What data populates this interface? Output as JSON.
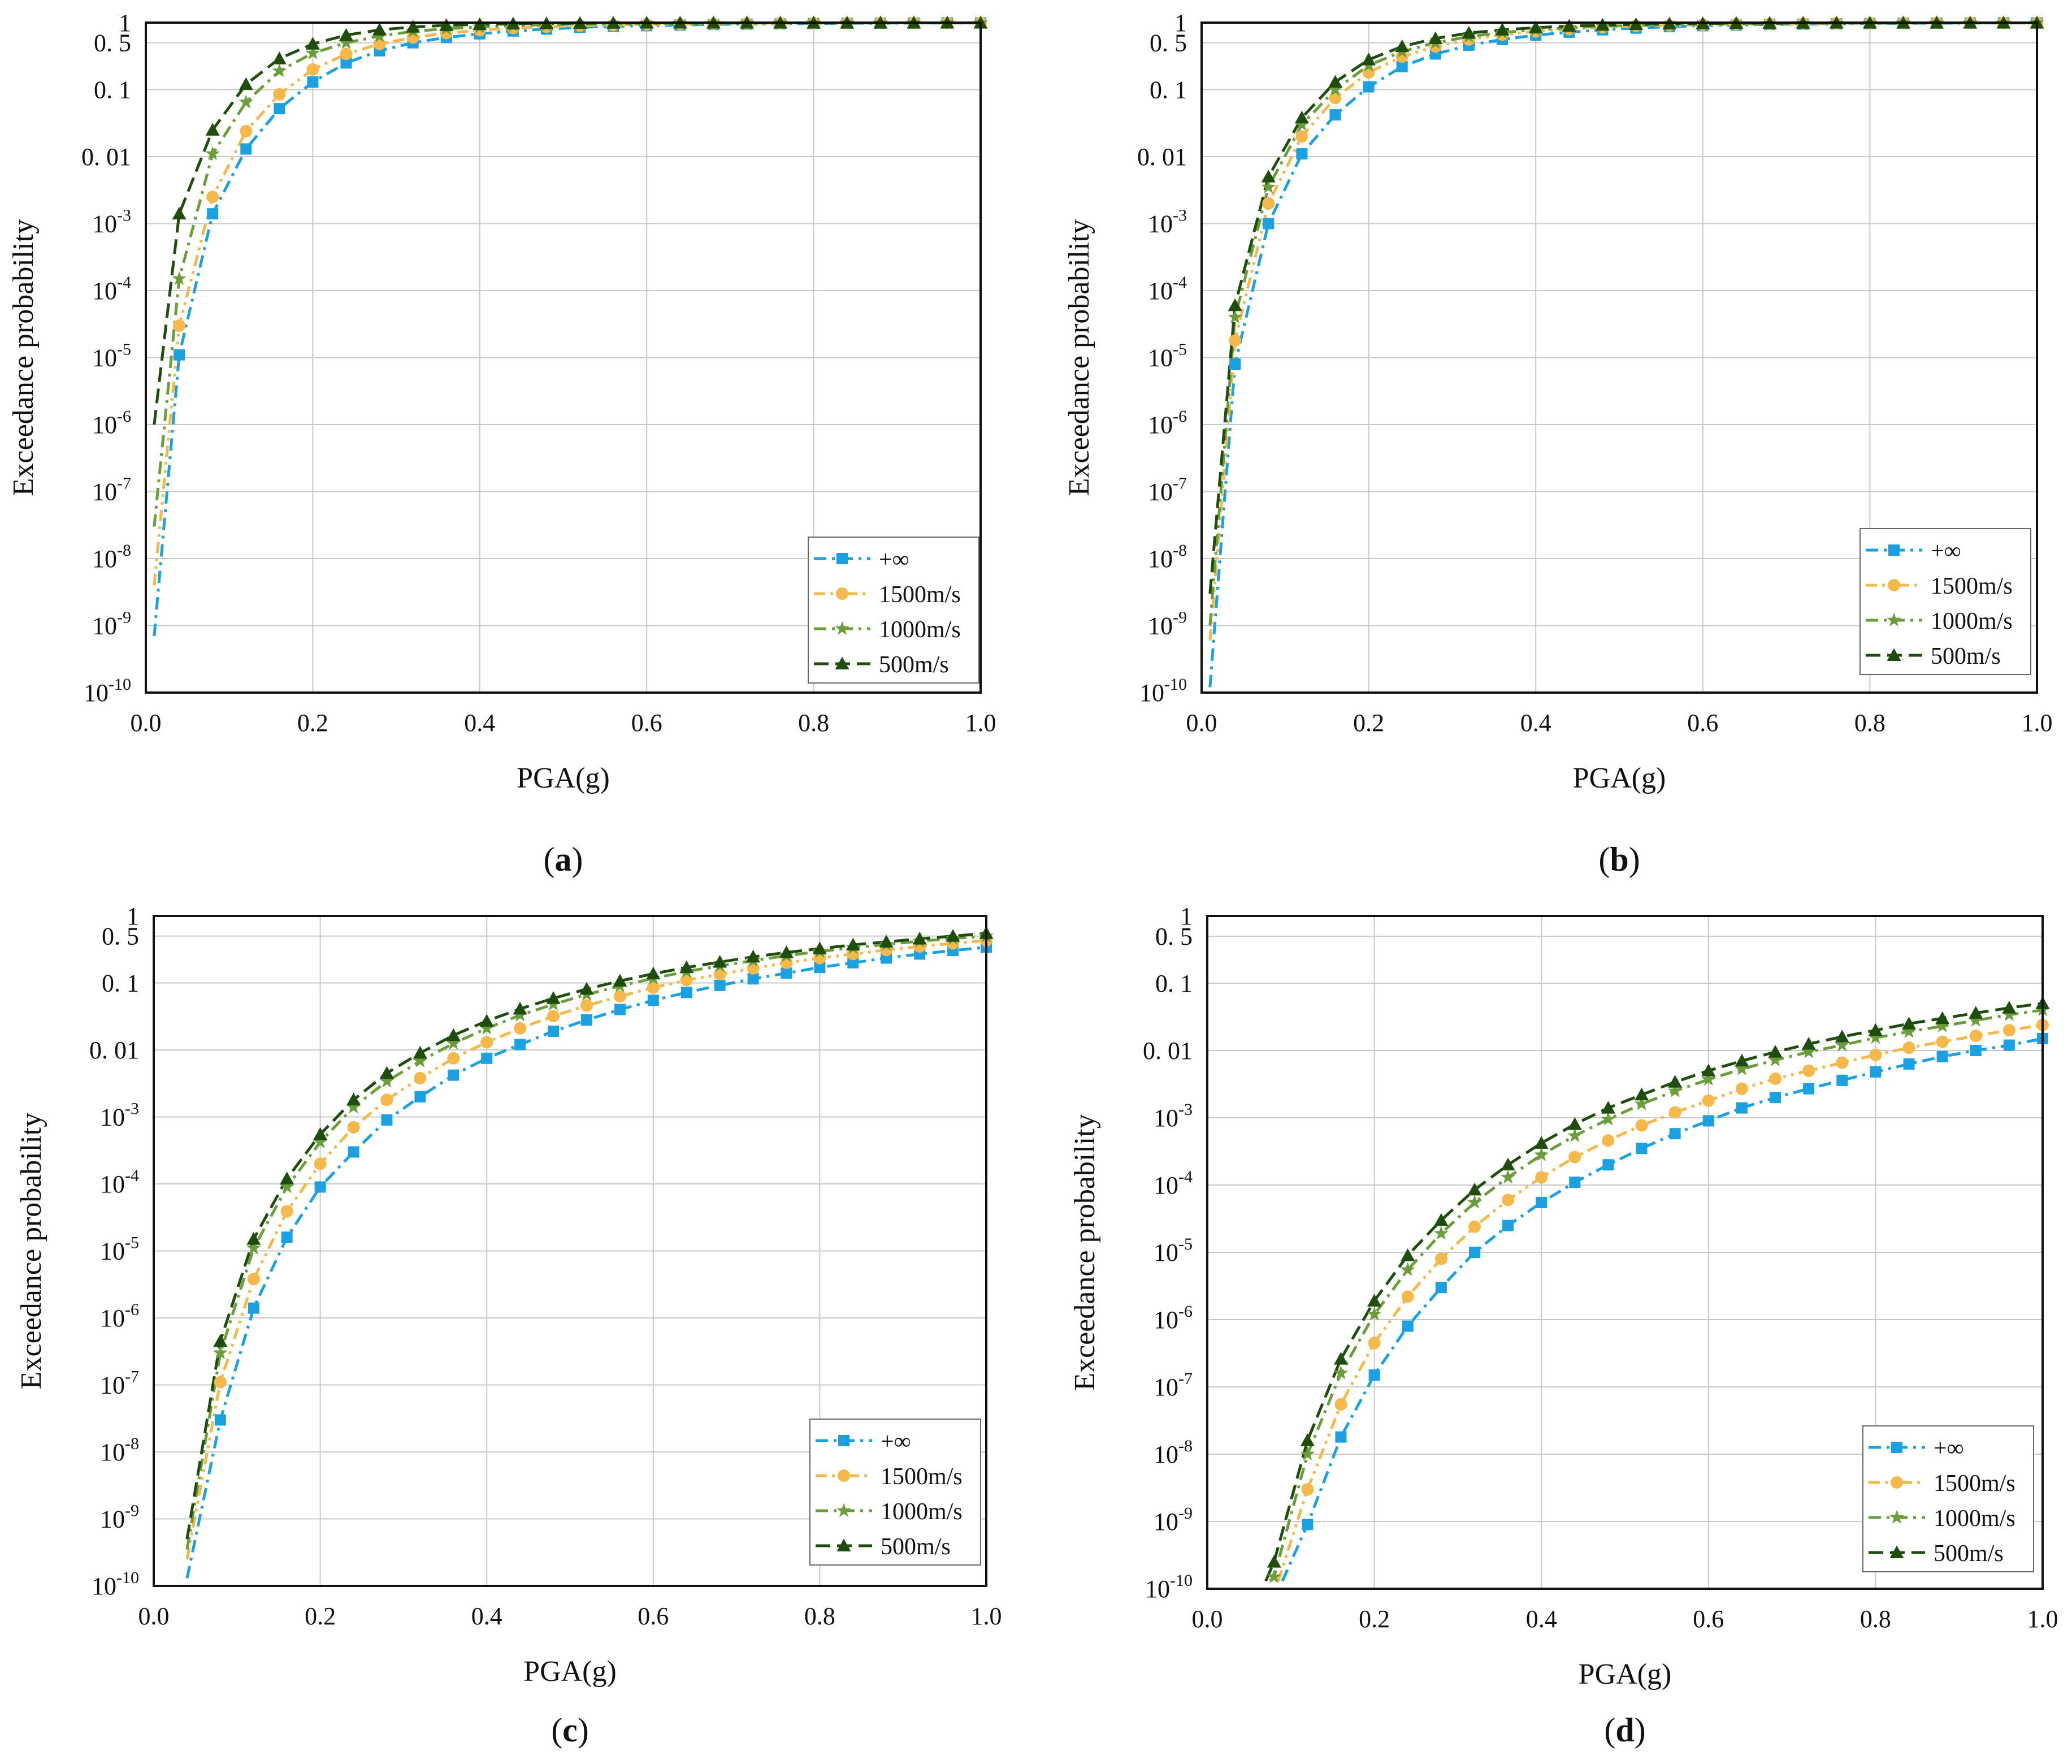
{
  "figure": {
    "colors": {
      "inf": "#1ba1e2",
      "v1500": "#f5b84a",
      "v1000": "#6b9e3a",
      "v500": "#1f4d0e"
    },
    "legend": [
      "+∞",
      "1500m/s",
      "1000m/s",
      "500m/s"
    ]
  },
  "chart_data": [
    {
      "type": "line",
      "panel_label": "a",
      "xlabel": "PGA(g)",
      "ylabel": "Exceedance probability",
      "xlim": [
        0,
        1.0
      ],
      "ylim": [
        1e-10,
        1
      ],
      "yscale": "log",
      "xticks": [
        "0.0",
        "0.2",
        "0.4",
        "0.6",
        "0.8",
        "1.0"
      ],
      "yticks": [
        {
          "value": 1,
          "base": "1",
          "exp": ""
        },
        {
          "value": 0.5,
          "base": "0. 5",
          "exp": ""
        },
        {
          "value": 0.1,
          "base": "0. 1",
          "exp": ""
        },
        {
          "value": 0.01,
          "base": "0. 01",
          "exp": ""
        },
        {
          "value": 0.001,
          "base": "10",
          "exp": "-3"
        },
        {
          "value": 0.0001,
          "base": "10",
          "exp": "-4"
        },
        {
          "value": 1e-05,
          "base": "10",
          "exp": "-5"
        },
        {
          "value": 1e-06,
          "base": "10",
          "exp": "-6"
        },
        {
          "value": 1e-07,
          "base": "10",
          "exp": "-7"
        },
        {
          "value": 1e-08,
          "base": "10",
          "exp": "-8"
        },
        {
          "value": 1e-09,
          "base": "10",
          "exp": "-9"
        },
        {
          "value": 1e-10,
          "base": "10",
          "exp": "-10"
        }
      ],
      "grid": true,
      "legend_position": "bottom-right",
      "x": [
        0,
        0.04,
        0.08,
        0.12,
        0.16,
        0.2,
        0.24,
        0.28,
        0.32,
        0.36,
        0.4,
        0.44,
        0.48,
        0.52,
        0.56,
        0.6,
        0.64,
        0.68,
        0.72,
        0.76,
        0.8,
        0.84,
        0.88,
        0.92,
        0.96,
        1.0
      ],
      "series": [
        {
          "name": "+∞",
          "key": "inf",
          "marker": "square",
          "dash": "dashdot",
          "start": [
            0.01,
            7e-10
          ],
          "values": [
            null,
            1.1e-05,
            0.0014,
            0.013,
            0.052,
            0.13,
            0.25,
            0.38,
            0.5,
            0.6,
            0.68,
            0.75,
            0.8,
            0.85,
            0.88,
            0.9,
            0.92,
            0.94,
            0.95,
            0.96,
            0.97,
            0.975,
            0.98,
            0.985,
            0.99,
            0.99
          ]
        },
        {
          "name": "1500m/s",
          "key": "v1500",
          "marker": "circle",
          "dash": "dashdotdot",
          "start": [
            0.01,
            4e-09
          ],
          "values": [
            null,
            3e-05,
            0.0025,
            0.024,
            0.085,
            0.2,
            0.34,
            0.48,
            0.6,
            0.7,
            0.77,
            0.83,
            0.87,
            0.9,
            0.92,
            0.94,
            0.95,
            0.96,
            0.97,
            0.975,
            0.98,
            0.985,
            0.99,
            0.99,
            0.99,
            0.99
          ]
        },
        {
          "name": "1000m/s",
          "key": "v1000",
          "marker": "star",
          "dash": "dashdot",
          "start": [
            0.01,
            3e-08
          ],
          "values": [
            null,
            0.00015,
            0.011,
            0.065,
            0.19,
            0.35,
            0.5,
            0.63,
            0.74,
            0.81,
            0.86,
            0.9,
            0.93,
            0.95,
            0.96,
            0.97,
            0.98,
            0.98,
            0.985,
            0.99,
            0.99,
            0.99,
            0.99,
            0.99,
            0.99,
            0.99
          ]
        },
        {
          "name": "500m/s",
          "key": "v500",
          "marker": "triangle",
          "dash": "dash",
          "start": [
            0.01,
            1e-06
          ],
          "values": [
            null,
            0.0014,
            0.025,
            0.12,
            0.29,
            0.48,
            0.65,
            0.78,
            0.86,
            0.91,
            0.94,
            0.96,
            0.97,
            0.98,
            0.985,
            0.99,
            0.99,
            0.99,
            0.99,
            0.99,
            0.99,
            0.99,
            0.99,
            0.99,
            0.99,
            0.99
          ]
        }
      ]
    },
    {
      "type": "line",
      "panel_label": "b",
      "xlabel": "PGA(g)",
      "ylabel": "Exceedance probability",
      "xlim": [
        0,
        1.0
      ],
      "ylim": [
        1e-10,
        1
      ],
      "yscale": "log",
      "xticks": [
        "0.0",
        "0.2",
        "0.4",
        "0.6",
        "0.8",
        "1.0"
      ],
      "yticks": [
        {
          "value": 1,
          "base": "1",
          "exp": ""
        },
        {
          "value": 0.5,
          "base": "0. 5",
          "exp": ""
        },
        {
          "value": 0.1,
          "base": "0. 1",
          "exp": ""
        },
        {
          "value": 0.01,
          "base": "0. 01",
          "exp": ""
        },
        {
          "value": 0.001,
          "base": "10",
          "exp": "-3"
        },
        {
          "value": 0.0001,
          "base": "10",
          "exp": "-4"
        },
        {
          "value": 1e-05,
          "base": "10",
          "exp": "-5"
        },
        {
          "value": 1e-06,
          "base": "10",
          "exp": "-6"
        },
        {
          "value": 1e-07,
          "base": "10",
          "exp": "-7"
        },
        {
          "value": 1e-08,
          "base": "10",
          "exp": "-8"
        },
        {
          "value": 1e-09,
          "base": "10",
          "exp": "-9"
        },
        {
          "value": 1e-10,
          "base": "10",
          "exp": "-10"
        }
      ],
      "grid": true,
      "legend_position": "bottom-right",
      "x": [
        0,
        0.04,
        0.08,
        0.12,
        0.16,
        0.2,
        0.24,
        0.28,
        0.32,
        0.36,
        0.4,
        0.44,
        0.48,
        0.52,
        0.56,
        0.6,
        0.64,
        0.68,
        0.72,
        0.76,
        0.8,
        0.84,
        0.88,
        0.92,
        0.96,
        1.0
      ],
      "series": [
        {
          "name": "+∞",
          "key": "inf",
          "marker": "square",
          "dash": "dashdot",
          "start": [
            0.01,
            1.2e-10
          ],
          "values": [
            null,
            8e-06,
            0.001,
            0.011,
            0.042,
            0.11,
            0.22,
            0.34,
            0.46,
            0.56,
            0.65,
            0.72,
            0.78,
            0.83,
            0.87,
            0.9,
            0.92,
            0.94,
            0.95,
            0.96,
            0.97,
            0.975,
            0.98,
            0.985,
            0.99,
            0.99
          ]
        },
        {
          "name": "1500m/s",
          "key": "v1500",
          "marker": "circle",
          "dash": "dashdotdot",
          "start": [
            0.01,
            6e-10
          ],
          "values": [
            null,
            1.8e-05,
            0.002,
            0.02,
            0.075,
            0.18,
            0.31,
            0.44,
            0.56,
            0.66,
            0.74,
            0.8,
            0.85,
            0.89,
            0.91,
            0.93,
            0.95,
            0.96,
            0.97,
            0.975,
            0.98,
            0.985,
            0.99,
            0.99,
            0.99,
            0.99
          ]
        },
        {
          "name": "1000m/s",
          "key": "v1000",
          "marker": "star",
          "dash": "dashdot",
          "start": [
            0.01,
            1e-09
          ],
          "values": [
            null,
            4e-05,
            0.0035,
            0.03,
            0.1,
            0.23,
            0.37,
            0.5,
            0.62,
            0.71,
            0.78,
            0.84,
            0.88,
            0.91,
            0.93,
            0.95,
            0.96,
            0.97,
            0.975,
            0.98,
            0.985,
            0.99,
            0.99,
            0.99,
            0.99,
            0.99
          ]
        },
        {
          "name": "500m/s",
          "key": "v500",
          "marker": "triangle",
          "dash": "dash",
          "start": [
            0.01,
            3e-09
          ],
          "values": [
            null,
            6e-05,
            0.005,
            0.038,
            0.13,
            0.28,
            0.44,
            0.58,
            0.7,
            0.78,
            0.84,
            0.89,
            0.92,
            0.94,
            0.96,
            0.97,
            0.98,
            0.98,
            0.985,
            0.99,
            0.99,
            0.99,
            0.99,
            0.99,
            0.99,
            0.99
          ]
        }
      ]
    },
    {
      "type": "line",
      "panel_label": "c",
      "xlabel": "PGA(g)",
      "ylabel": "Exceedance probability",
      "xlim": [
        0,
        1.0
      ],
      "ylim": [
        1e-10,
        1
      ],
      "yscale": "log",
      "xticks": [
        "0.0",
        "0.2",
        "0.4",
        "0.6",
        "0.8",
        "1.0"
      ],
      "yticks": [
        {
          "value": 1,
          "base": "1",
          "exp": ""
        },
        {
          "value": 0.5,
          "base": "0. 5",
          "exp": ""
        },
        {
          "value": 0.1,
          "base": "0. 1",
          "exp": ""
        },
        {
          "value": 0.01,
          "base": "0. 01",
          "exp": ""
        },
        {
          "value": 0.001,
          "base": "10",
          "exp": "-3"
        },
        {
          "value": 0.0001,
          "base": "10",
          "exp": "-4"
        },
        {
          "value": 1e-05,
          "base": "10",
          "exp": "-5"
        },
        {
          "value": 1e-06,
          "base": "10",
          "exp": "-6"
        },
        {
          "value": 1e-07,
          "base": "10",
          "exp": "-7"
        },
        {
          "value": 1e-08,
          "base": "10",
          "exp": "-8"
        },
        {
          "value": 1e-09,
          "base": "10",
          "exp": "-9"
        },
        {
          "value": 1e-10,
          "base": "10",
          "exp": "-10"
        }
      ],
      "grid": true,
      "legend_position": "bottom-right",
      "x": [
        0,
        0.04,
        0.08,
        0.12,
        0.16,
        0.2,
        0.24,
        0.28,
        0.32,
        0.36,
        0.4,
        0.44,
        0.48,
        0.52,
        0.56,
        0.6,
        0.64,
        0.68,
        0.72,
        0.76,
        0.8,
        0.84,
        0.88,
        0.92,
        0.96,
        1.0
      ],
      "series": [
        {
          "name": "+∞",
          "key": "inf",
          "marker": "square",
          "dash": "dashdot",
          "start": [
            0.04,
            1.3e-10
          ],
          "values": [
            null,
            null,
            3e-08,
            1.4e-06,
            1.6e-05,
            9e-05,
            0.0003,
            0.0009,
            0.002,
            0.0042,
            0.0075,
            0.012,
            0.019,
            0.028,
            0.04,
            0.055,
            0.072,
            0.092,
            0.115,
            0.14,
            0.17,
            0.2,
            0.235,
            0.27,
            0.305,
            0.34
          ]
        },
        {
          "name": "1500m/s",
          "key": "v1500",
          "marker": "circle",
          "dash": "dashdotdot",
          "start": [
            0.04,
            2.5e-10
          ],
          "values": [
            null,
            null,
            1.1e-07,
            3.8e-06,
            3.9e-05,
            0.0002,
            0.0007,
            0.0018,
            0.0038,
            0.0075,
            0.013,
            0.021,
            0.032,
            0.046,
            0.063,
            0.085,
            0.11,
            0.135,
            0.165,
            0.2,
            0.235,
            0.27,
            0.31,
            0.35,
            0.39,
            0.43
          ]
        },
        {
          "name": "1000m/s",
          "key": "v1000",
          "marker": "star",
          "dash": "dashdot",
          "start": [
            0.04,
            3.5e-10
          ],
          "values": [
            null,
            null,
            3e-07,
            1.1e-05,
            9e-05,
            0.00042,
            0.0014,
            0.0034,
            0.0068,
            0.0125,
            0.021,
            0.033,
            0.048,
            0.067,
            0.09,
            0.117,
            0.148,
            0.18,
            0.215,
            0.255,
            0.295,
            0.335,
            0.375,
            0.42,
            0.46,
            0.5
          ]
        },
        {
          "name": "500m/s",
          "key": "v500",
          "marker": "triangle",
          "dash": "dash",
          "start": [
            0.04,
            5e-10
          ],
          "values": [
            null,
            null,
            4.5e-07,
            1.5e-05,
            0.00012,
            0.00055,
            0.0018,
            0.0045,
            0.009,
            0.0165,
            0.027,
            0.041,
            0.059,
            0.081,
            0.107,
            0.137,
            0.17,
            0.205,
            0.245,
            0.285,
            0.325,
            0.37,
            0.41,
            0.455,
            0.5,
            0.55
          ]
        }
      ]
    },
    {
      "type": "line",
      "panel_label": "d",
      "xlabel": "PGA(g)",
      "ylabel": "Exceedance probability",
      "xlim": [
        0,
        1.0
      ],
      "ylim": [
        1e-10,
        1
      ],
      "yscale": "log",
      "xticks": [
        "0.0",
        "0.2",
        "0.4",
        "0.6",
        "0.8",
        "1.0"
      ],
      "yticks": [
        {
          "value": 1,
          "base": "1",
          "exp": ""
        },
        {
          "value": 0.5,
          "base": "0. 5",
          "exp": ""
        },
        {
          "value": 0.1,
          "base": "0. 1",
          "exp": ""
        },
        {
          "value": 0.01,
          "base": "0. 01",
          "exp": ""
        },
        {
          "value": 0.001,
          "base": "10",
          "exp": "-3"
        },
        {
          "value": 0.0001,
          "base": "10",
          "exp": "-4"
        },
        {
          "value": 1e-05,
          "base": "10",
          "exp": "-5"
        },
        {
          "value": 1e-06,
          "base": "10",
          "exp": "-6"
        },
        {
          "value": 1e-07,
          "base": "10",
          "exp": "-7"
        },
        {
          "value": 1e-08,
          "base": "10",
          "exp": "-8"
        },
        {
          "value": 1e-09,
          "base": "10",
          "exp": "-9"
        },
        {
          "value": 1e-10,
          "base": "10",
          "exp": "-10"
        }
      ],
      "grid": true,
      "legend_position": "bottom-right",
      "x": [
        0,
        0.04,
        0.08,
        0.12,
        0.16,
        0.2,
        0.24,
        0.28,
        0.32,
        0.36,
        0.4,
        0.44,
        0.48,
        0.52,
        0.56,
        0.6,
        0.64,
        0.68,
        0.72,
        0.76,
        0.8,
        0.84,
        0.88,
        0.92,
        0.96,
        1.0
      ],
      "series": [
        {
          "name": "+∞",
          "key": "inf",
          "marker": "square",
          "dash": "dashdot",
          "start": [
            0.09,
            1.3e-10
          ],
          "values": [
            null,
            null,
            null,
            9e-10,
            1.8e-08,
            1.5e-07,
            8e-07,
            3e-06,
            1e-05,
            2.5e-05,
            5.5e-05,
            0.00011,
            0.0002,
            0.00035,
            0.00058,
            0.0009,
            0.0014,
            0.002,
            0.0027,
            0.0036,
            0.0048,
            0.0063,
            0.0081,
            0.01,
            0.012,
            0.015
          ]
        },
        {
          "name": "1500m/s",
          "key": "v1500",
          "marker": "circle",
          "dash": "dashdotdot",
          "start": [
            0.085,
            1.3e-10
          ],
          "values": [
            null,
            null,
            null,
            3e-09,
            5.5e-08,
            4.5e-07,
            2.2e-06,
            8e-06,
            2.4e-05,
            6e-05,
            0.00013,
            0.00026,
            0.00046,
            0.00077,
            0.0012,
            0.0018,
            0.0027,
            0.0038,
            0.005,
            0.0066,
            0.0086,
            0.011,
            0.0135,
            0.0165,
            0.02,
            0.024
          ]
        },
        {
          "name": "1000m/s",
          "key": "v1000",
          "marker": "star",
          "dash": "dashdot",
          "start": [
            0.075,
            1.3e-10
          ],
          "values": [
            null,
            null,
            1.5e-10,
            1e-08,
            1.6e-07,
            1.2e-06,
            5.5e-06,
            1.9e-05,
            5.5e-05,
            0.00013,
            0.00028,
            0.00054,
            0.00095,
            0.0016,
            0.0025,
            0.0037,
            0.0053,
            0.0072,
            0.0095,
            0.012,
            0.0155,
            0.019,
            0.023,
            0.028,
            0.034,
            0.04
          ]
        },
        {
          "name": "500m/s",
          "key": "v500",
          "marker": "triangle",
          "dash": "dash",
          "start": [
            0.07,
            1.3e-10
          ],
          "values": [
            null,
            null,
            2.5e-10,
            1.6e-08,
            2.6e-07,
            1.9e-06,
            9e-06,
            3e-05,
            8.5e-05,
            0.0002,
            0.00042,
            0.0008,
            0.0014,
            0.0022,
            0.0034,
            0.005,
            0.007,
            0.0095,
            0.0125,
            0.016,
            0.02,
            0.025,
            0.03,
            0.036,
            0.043,
            0.05
          ]
        }
      ]
    }
  ]
}
